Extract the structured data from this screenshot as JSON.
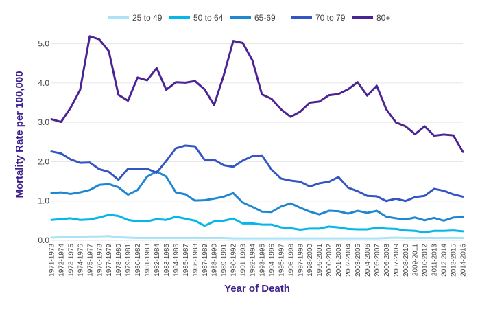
{
  "chart_data": {
    "type": "line",
    "xlabel": "Year of Death",
    "ylabel": "Mortality Rate per 100,000",
    "ylim": [
      0,
      5.5
    ],
    "yticks": [
      "0.0",
      "1.0",
      "2.0",
      "3.0",
      "4.0",
      "5.0"
    ],
    "grid": true,
    "legend_position": "top",
    "categories": [
      "1971-1973",
      "1972-1974",
      "1973-1975",
      "1974-1976",
      "1975-1977",
      "1976-1978",
      "1977-1979",
      "1978-1980",
      "1979-1981",
      "1980-1982",
      "1981-1983",
      "1982-1984",
      "1983-1985",
      "1984-1986",
      "1985-1987",
      "1986-1988",
      "1987-1989",
      "1988-1990",
      "1989-1991",
      "1990-1992",
      "1991-1993",
      "1992-1994",
      "1993-1995",
      "1994-1996",
      "1995-1997",
      "1996-1998",
      "1997-1999",
      "1998-2000",
      "1999-2001",
      "2000-2002",
      "2001-2003",
      "2002-2004",
      "2003-2005",
      "2004-2006",
      "2005-2007",
      "2006-2008",
      "2007-2009",
      "2008-2010",
      "2009-2011",
      "2010-2012",
      "2011-2013",
      "2012-2014",
      "2013-2015",
      "2014-2016"
    ],
    "series": [
      {
        "name": "25 to 49",
        "color": "#a9e3f5",
        "values": [
          0.07,
          0.08,
          0.08,
          0.09,
          0.1,
          0.1,
          0.11,
          0.08,
          0.07,
          0.06,
          0.06,
          0.06,
          0.06,
          0.06,
          0.06,
          0.06,
          0.06,
          0.06,
          0.06,
          0.05,
          0.05,
          0.05,
          0.05,
          0.05,
          0.05,
          0.05,
          0.05,
          0.05,
          0.05,
          0.05,
          0.05,
          0.05,
          0.05,
          0.05,
          0.05,
          0.06,
          0.07,
          0.06,
          0.06,
          0.06,
          0.06,
          0.06,
          0.06,
          0.06
        ]
      },
      {
        "name": "50 to 64",
        "color": "#06b6e8",
        "values": [
          0.52,
          0.54,
          0.56,
          0.52,
          0.53,
          0.58,
          0.65,
          0.62,
          0.52,
          0.48,
          0.48,
          0.54,
          0.52,
          0.6,
          0.55,
          0.5,
          0.37,
          0.48,
          0.5,
          0.55,
          0.43,
          0.43,
          0.4,
          0.4,
          0.33,
          0.31,
          0.27,
          0.3,
          0.3,
          0.35,
          0.33,
          0.29,
          0.28,
          0.28,
          0.32,
          0.3,
          0.29,
          0.25,
          0.24,
          0.2,
          0.24,
          0.24,
          0.25,
          0.23
        ]
      },
      {
        "name": "65-69",
        "color": "#1f86d1",
        "values": [
          1.2,
          1.22,
          1.18,
          1.22,
          1.28,
          1.41,
          1.43,
          1.35,
          1.16,
          1.28,
          1.62,
          1.75,
          1.62,
          1.22,
          1.17,
          1.01,
          1.02,
          1.06,
          1.11,
          1.2,
          0.96,
          0.85,
          0.73,
          0.72,
          0.86,
          0.94,
          0.83,
          0.73,
          0.66,
          0.75,
          0.74,
          0.68,
          0.75,
          0.7,
          0.75,
          0.6,
          0.56,
          0.53,
          0.58,
          0.51,
          0.57,
          0.5,
          0.58,
          0.59
        ]
      },
      {
        "name": "70 to 79",
        "color": "#3456c4",
        "values": [
          2.26,
          2.21,
          2.06,
          1.97,
          1.98,
          1.81,
          1.74,
          1.54,
          1.82,
          1.81,
          1.82,
          1.72,
          2.02,
          2.34,
          2.41,
          2.39,
          2.05,
          2.05,
          1.91,
          1.87,
          2.03,
          2.14,
          2.16,
          1.8,
          1.57,
          1.52,
          1.49,
          1.37,
          1.45,
          1.49,
          1.61,
          1.34,
          1.25,
          1.13,
          1.12,
          1.0,
          1.06,
          1.0,
          1.1,
          1.13,
          1.31,
          1.26,
          1.17,
          1.11
        ]
      },
      {
        "name": "80+",
        "color": "#4a2395",
        "values": [
          3.08,
          3.01,
          3.37,
          3.83,
          5.19,
          5.11,
          4.81,
          3.7,
          3.55,
          4.14,
          4.07,
          4.38,
          3.83,
          4.02,
          4.01,
          4.05,
          3.84,
          3.44,
          4.19,
          5.07,
          5.02,
          4.58,
          3.71,
          3.6,
          3.33,
          3.14,
          3.27,
          3.5,
          3.53,
          3.69,
          3.72,
          3.84,
          4.02,
          3.68,
          3.93,
          3.33,
          3.0,
          2.9,
          2.7,
          2.9,
          2.66,
          2.69,
          2.67,
          2.25
        ]
      }
    ]
  }
}
